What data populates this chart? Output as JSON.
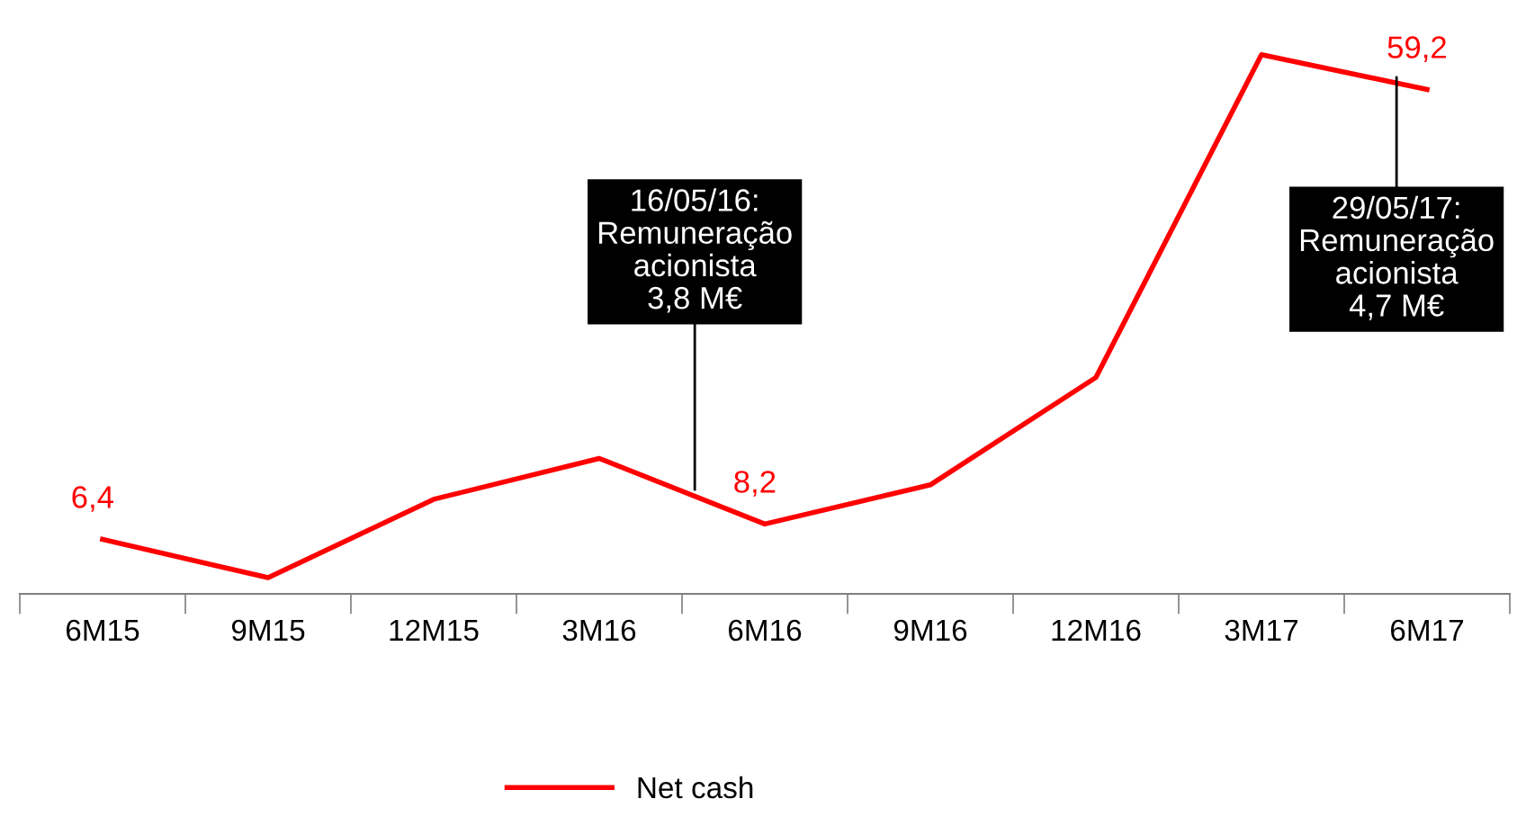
{
  "chart_data": {
    "type": "line",
    "categories": [
      "6M15",
      "9M15",
      "12M15",
      "3M16",
      "6M16",
      "9M16",
      "12M16",
      "3M17",
      "6M17"
    ],
    "series": [
      {
        "name": "Net cash",
        "color": "#ff0000",
        "values": [
          6.4,
          1.9,
          11.1,
          15.9,
          8.2,
          12.8,
          25.4,
          63.3,
          59.2
        ],
        "value_labels": [
          "6,4",
          null,
          null,
          null,
          "8,2",
          null,
          null,
          null,
          "59,2"
        ]
      }
    ],
    "grid": false,
    "legend": "bottom",
    "tick_labels": "x",
    "marker": "none",
    "line_style": "solid",
    "annotations": [
      "16/05/16:\nRemuneração\nacionista\n3,8 M€",
      "29/05/17:\nRemuneração\nacionista\n4,7 M€"
    ]
  }
}
